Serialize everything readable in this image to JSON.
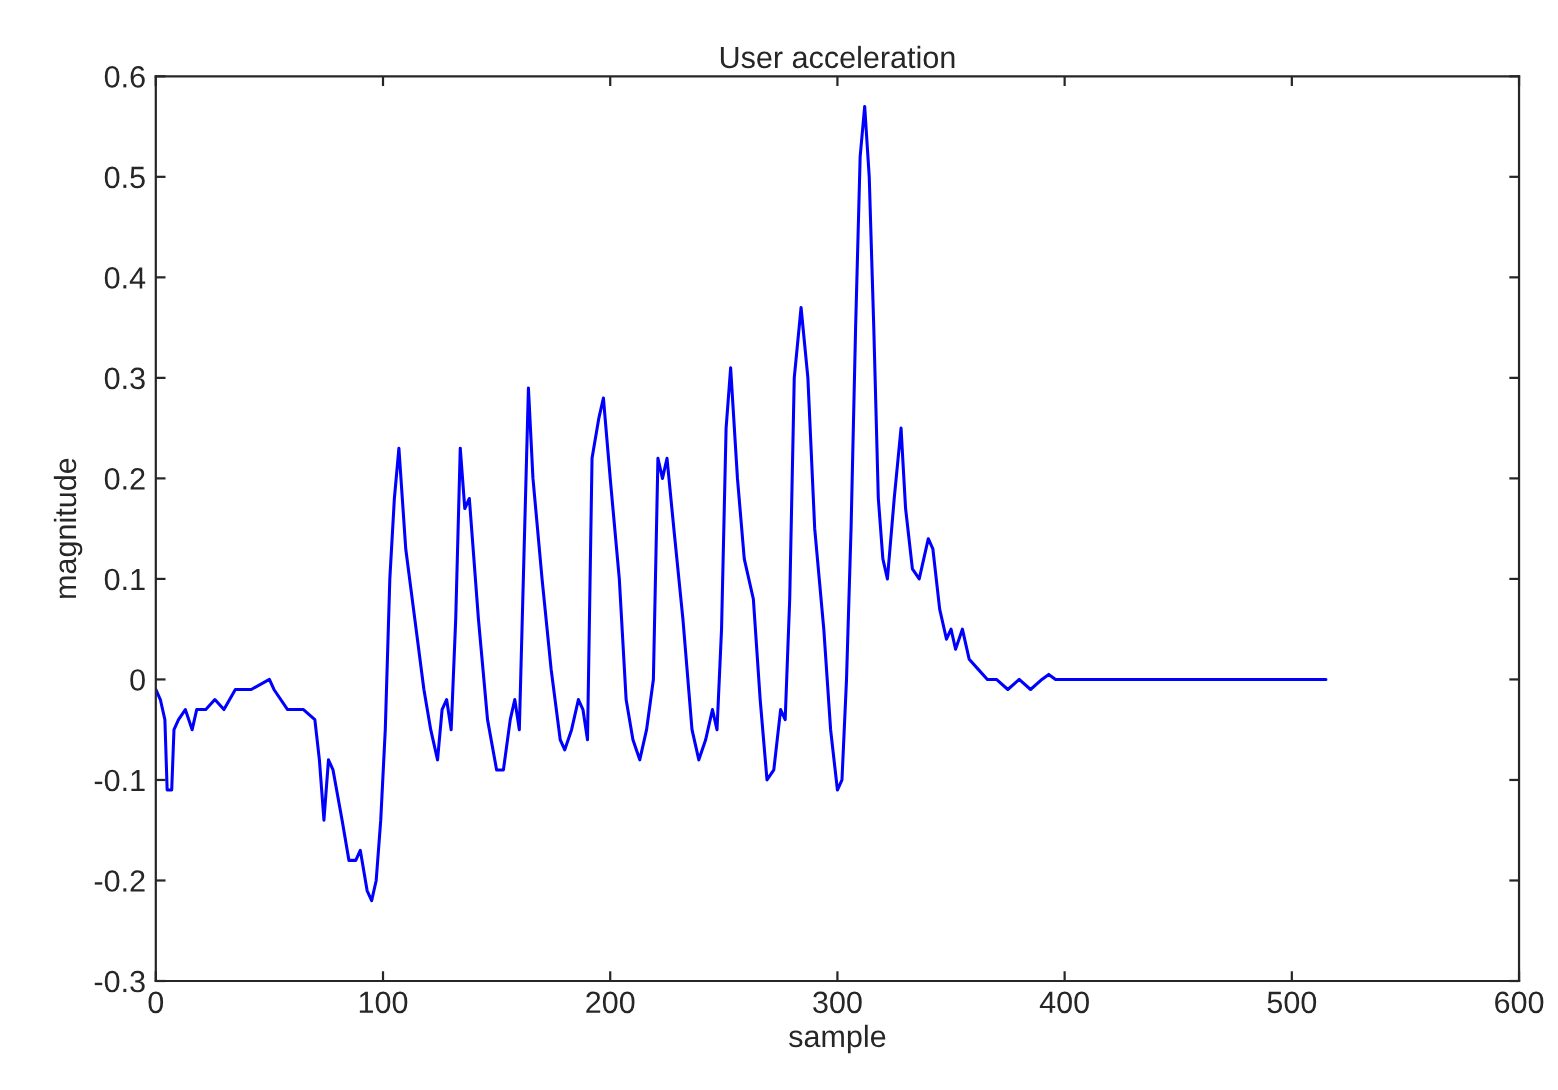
{
  "chart_data": {
    "type": "line",
    "title": "User acceleration",
    "xlabel": "sample",
    "ylabel": "magnitude",
    "xlim": [
      0,
      600
    ],
    "xticks": [
      0,
      100,
      200,
      300,
      400,
      500,
      600
    ],
    "ylim": [
      -0.3,
      0.6
    ],
    "yticks": [
      -0.3,
      -0.2,
      -0.1,
      0,
      0.1,
      0.2,
      0.3,
      0.4,
      0.5,
      0.6
    ],
    "grid": false,
    "marker": "none",
    "line_style": "solid",
    "series": [
      {
        "color": "#0000ff",
        "x": [
          0,
          2,
          4,
          5,
          7,
          8,
          10,
          13,
          16,
          18,
          22,
          26,
          30,
          35,
          42,
          50,
          52,
          58,
          65,
          70,
          72,
          74,
          76,
          78,
          82,
          85,
          88,
          90,
          93,
          95,
          97,
          99,
          101,
          103,
          105,
          107,
          110,
          114,
          118,
          121,
          124,
          126,
          128,
          130,
          132,
          134,
          136,
          138,
          142,
          146,
          150,
          153,
          156,
          158,
          160,
          162,
          164,
          166,
          170,
          174,
          178,
          180,
          183,
          186,
          188,
          190,
          192,
          195,
          197,
          200,
          204,
          207,
          210,
          213,
          216,
          219,
          221,
          223,
          225,
          228,
          232,
          236,
          239,
          242,
          245,
          247,
          249,
          251,
          253,
          256,
          259,
          263,
          266,
          269,
          272,
          275,
          277,
          279,
          281,
          284,
          287,
          290,
          294,
          297,
          300,
          302,
          304,
          306,
          308,
          310,
          312,
          314,
          316,
          318,
          320,
          322,
          325,
          328,
          330,
          333,
          336,
          340,
          342,
          345,
          348,
          350,
          352,
          355,
          358,
          362,
          366,
          370,
          375,
          380,
          385,
          390,
          393,
          396,
          515
        ],
        "values": [
          -0.01,
          -0.02,
          -0.04,
          -0.11,
          -0.11,
          -0.05,
          -0.04,
          -0.03,
          -0.05,
          -0.03,
          -0.03,
          -0.02,
          -0.03,
          -0.01,
          -0.01,
          0.0,
          -0.01,
          -0.03,
          -0.03,
          -0.04,
          -0.08,
          -0.14,
          -0.08,
          -0.09,
          -0.14,
          -0.18,
          -0.18,
          -0.17,
          -0.21,
          -0.22,
          -0.2,
          -0.14,
          -0.05,
          0.1,
          0.18,
          0.23,
          0.13,
          0.06,
          -0.01,
          -0.05,
          -0.08,
          -0.03,
          -0.02,
          -0.05,
          0.06,
          0.23,
          0.17,
          0.18,
          0.06,
          -0.04,
          -0.09,
          -0.09,
          -0.04,
          -0.02,
          -0.05,
          0.12,
          0.29,
          0.2,
          0.1,
          0.01,
          -0.06,
          -0.07,
          -0.05,
          -0.02,
          -0.03,
          -0.06,
          0.22,
          0.26,
          0.28,
          0.2,
          0.1,
          -0.02,
          -0.06,
          -0.08,
          -0.05,
          0.0,
          0.22,
          0.2,
          0.22,
          0.15,
          0.06,
          -0.05,
          -0.08,
          -0.06,
          -0.03,
          -0.05,
          0.05,
          0.25,
          0.31,
          0.2,
          0.12,
          0.08,
          -0.02,
          -0.1,
          -0.09,
          -0.03,
          -0.04,
          0.08,
          0.3,
          0.37,
          0.3,
          0.15,
          0.05,
          -0.05,
          -0.11,
          -0.1,
          0.0,
          0.15,
          0.35,
          0.52,
          0.57,
          0.5,
          0.35,
          0.18,
          0.12,
          0.1,
          0.18,
          0.25,
          0.17,
          0.11,
          0.1,
          0.14,
          0.13,
          0.07,
          0.04,
          0.05,
          0.03,
          0.05,
          0.02,
          0.01,
          0.0,
          0.0,
          -0.01,
          0.0,
          -0.01,
          0.0,
          0.005,
          0.0,
          0.0
        ]
      }
    ]
  }
}
